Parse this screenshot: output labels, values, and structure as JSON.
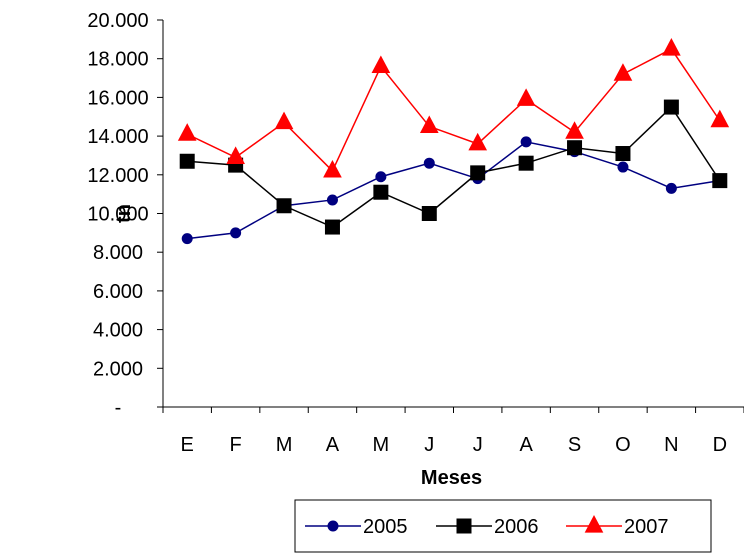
{
  "chart_data": {
    "type": "line",
    "xlabel": "Meses",
    "ylabel": "tn",
    "categories": [
      "E",
      "F",
      "M",
      "A",
      "M",
      "J",
      "J",
      "A",
      "S",
      "O",
      "N",
      "D"
    ],
    "ylim": [
      0,
      20000
    ],
    "yticks": [
      0,
      2000,
      4000,
      6000,
      8000,
      10000,
      12000,
      14000,
      16000,
      18000,
      20000
    ],
    "ytick_labels": [
      "-",
      "2.000",
      "4.000",
      "6.000",
      "8.000",
      "10.000",
      "12.000",
      "14.000",
      "16.000",
      "18.000",
      "20.000"
    ],
    "grid": false,
    "legend_position": "bottom",
    "series": [
      {
        "name": "2005",
        "color": "#000080",
        "marker": "circle",
        "values": [
          8700,
          9000,
          10400,
          10700,
          11900,
          12600,
          11800,
          13700,
          13200,
          12400,
          11300,
          11700
        ]
      },
      {
        "name": "2006",
        "color": "#000000",
        "marker": "square",
        "values": [
          12700,
          12500,
          10400,
          9300,
          11100,
          10000,
          12100,
          12600,
          13400,
          13100,
          15500,
          11700
        ]
      },
      {
        "name": "2007",
        "color": "#FF0000",
        "marker": "triangle",
        "values": [
          14100,
          12900,
          14700,
          12200,
          17600,
          14500,
          13600,
          15900,
          14200,
          17200,
          18500,
          14800
        ]
      }
    ]
  }
}
